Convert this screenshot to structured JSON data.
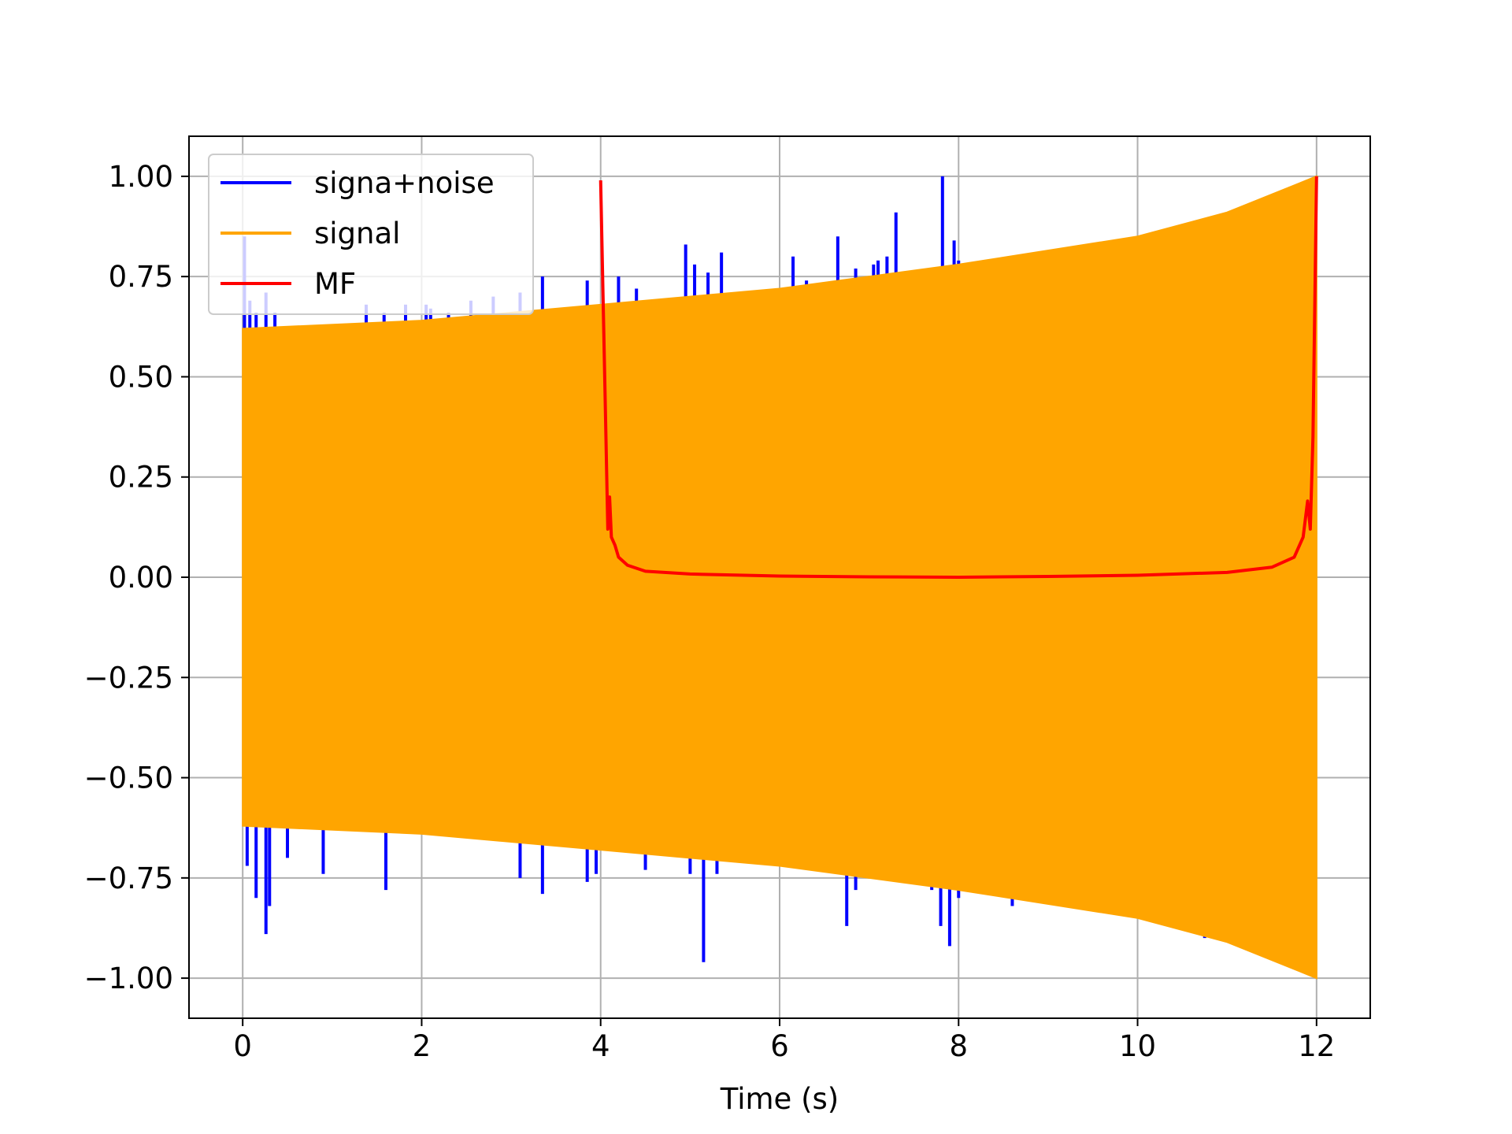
{
  "chart_data": {
    "type": "line",
    "title": "",
    "xlabel": "Time (s)",
    "ylabel": "",
    "xlim": [
      -0.6,
      12.6
    ],
    "ylim": [
      -1.1,
      1.1
    ],
    "x_ticks": [
      0,
      2,
      4,
      6,
      8,
      10,
      12
    ],
    "x_tick_labels": [
      "0",
      "2",
      "4",
      "6",
      "8",
      "10",
      "12"
    ],
    "y_ticks": [
      1.0,
      0.75,
      0.5,
      0.25,
      0.0,
      -0.25,
      -0.5,
      -0.75,
      -1.0
    ],
    "y_tick_labels": [
      "1.00",
      "0.75",
      "0.50",
      "0.25",
      "0.00",
      "−0.25",
      "−0.50",
      "−0.75",
      "−1.00"
    ],
    "grid": true,
    "legend_position": "top-left",
    "series": [
      {
        "name": "signa+noise",
        "color": "#0000ff",
        "kind": "noise_spikes",
        "spikes": [
          [
            0.02,
            0.85
          ],
          [
            0.08,
            0.69
          ],
          [
            0.15,
            0.66
          ],
          [
            0.26,
            0.71
          ],
          [
            0.36,
            0.66
          ],
          [
            1.38,
            0.68
          ],
          [
            1.58,
            0.66
          ],
          [
            1.82,
            0.68
          ],
          [
            2.05,
            0.68
          ],
          [
            2.1,
            0.67
          ],
          [
            2.3,
            0.66
          ],
          [
            2.55,
            0.69
          ],
          [
            2.8,
            0.7
          ],
          [
            3.1,
            0.71
          ],
          [
            3.35,
            0.75
          ],
          [
            3.85,
            0.74
          ],
          [
            4.2,
            0.75
          ],
          [
            4.4,
            0.72
          ],
          [
            4.95,
            0.83
          ],
          [
            5.05,
            0.78
          ],
          [
            5.2,
            0.76
          ],
          [
            5.35,
            0.81
          ],
          [
            6.15,
            0.8
          ],
          [
            6.3,
            0.74
          ],
          [
            6.65,
            0.85
          ],
          [
            6.85,
            0.77
          ],
          [
            7.05,
            0.78
          ],
          [
            7.1,
            0.79
          ],
          [
            7.2,
            0.8
          ],
          [
            7.3,
            0.91
          ],
          [
            7.82,
            1.0
          ],
          [
            7.95,
            0.84
          ],
          [
            8.0,
            0.79
          ],
          [
            0.05,
            -0.72
          ],
          [
            0.15,
            -0.8
          ],
          [
            0.26,
            -0.89
          ],
          [
            0.3,
            -0.82
          ],
          [
            0.5,
            -0.7
          ],
          [
            0.9,
            -0.74
          ],
          [
            1.6,
            -0.78
          ],
          [
            3.1,
            -0.75
          ],
          [
            3.35,
            -0.79
          ],
          [
            3.85,
            -0.76
          ],
          [
            3.95,
            -0.74
          ],
          [
            4.5,
            -0.73
          ],
          [
            5.0,
            -0.74
          ],
          [
            5.15,
            -0.96
          ],
          [
            5.3,
            -0.74
          ],
          [
            6.75,
            -0.87
          ],
          [
            6.85,
            -0.78
          ],
          [
            7.7,
            -0.78
          ],
          [
            7.8,
            -0.87
          ],
          [
            7.9,
            -0.92
          ],
          [
            8.0,
            -0.8
          ],
          [
            8.6,
            -0.82
          ],
          [
            9.0,
            -0.81
          ],
          [
            10.75,
            -0.9
          ]
        ]
      },
      {
        "name": "signal",
        "color": "#ffa500",
        "kind": "filled_oscillation_envelope",
        "x_start": 0.0,
        "x_end": 12.0,
        "envelope": [
          [
            0,
            0.62
          ],
          [
            2,
            0.64
          ],
          [
            4,
            0.68
          ],
          [
            6,
            0.72
          ],
          [
            8,
            0.78
          ],
          [
            10,
            0.85
          ],
          [
            11,
            0.91
          ],
          [
            12,
            1.0
          ]
        ]
      },
      {
        "name": "MF",
        "color": "#ff0000",
        "kind": "line",
        "points": [
          [
            4.0,
            0.99
          ],
          [
            4.05,
            0.45
          ],
          [
            4.08,
            0.12
          ],
          [
            4.1,
            0.2
          ],
          [
            4.12,
            0.1
          ],
          [
            4.16,
            0.08
          ],
          [
            4.2,
            0.05
          ],
          [
            4.3,
            0.03
          ],
          [
            4.5,
            0.015
          ],
          [
            5.0,
            0.008
          ],
          [
            6.0,
            0.003
          ],
          [
            7.0,
            0.001
          ],
          [
            8.0,
            0.0
          ],
          [
            9.0,
            0.002
          ],
          [
            10.0,
            0.005
          ],
          [
            11.0,
            0.012
          ],
          [
            11.5,
            0.025
          ],
          [
            11.75,
            0.05
          ],
          [
            11.85,
            0.1
          ],
          [
            11.9,
            0.19
          ],
          [
            11.93,
            0.12
          ],
          [
            11.96,
            0.35
          ],
          [
            12.0,
            1.0
          ]
        ]
      }
    ]
  }
}
